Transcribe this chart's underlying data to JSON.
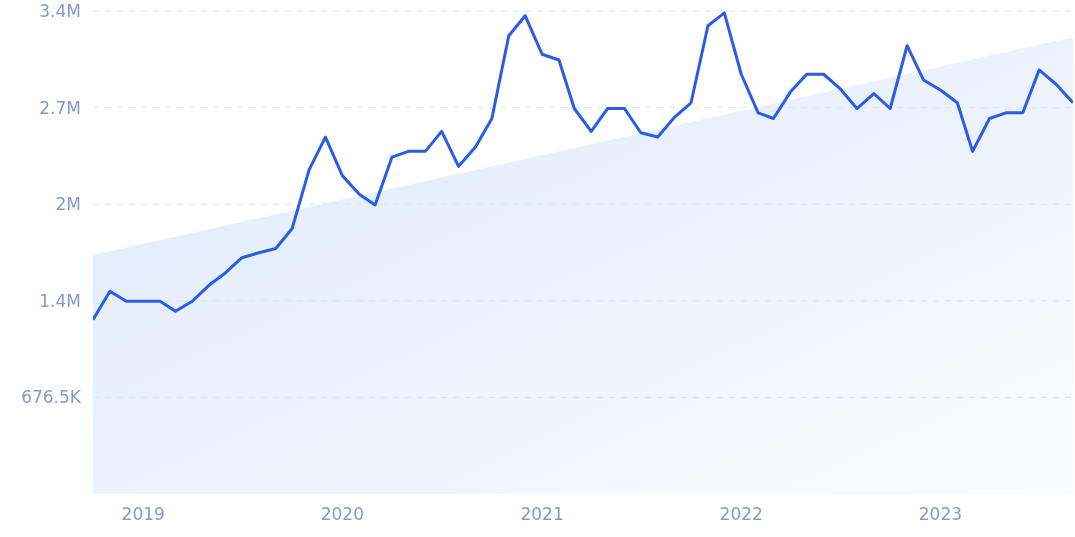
{
  "chart_data": {
    "type": "line",
    "x": [
      "2018-10",
      "2018-11",
      "2018-12",
      "2019-01",
      "2019-02",
      "2019-03",
      "2019-04",
      "2019-05",
      "2019-06",
      "2019-07",
      "2019-08",
      "2019-09",
      "2019-10",
      "2019-11",
      "2019-12",
      "2020-01",
      "2020-02",
      "2020-03",
      "2020-04",
      "2020-05",
      "2020-06",
      "2020-07",
      "2020-08",
      "2020-09",
      "2020-10",
      "2020-11",
      "2020-12",
      "2021-01",
      "2021-02",
      "2021-03",
      "2021-04",
      "2021-05",
      "2021-06",
      "2021-07",
      "2021-08",
      "2021-09",
      "2021-10",
      "2021-11",
      "2021-12",
      "2022-01",
      "2022-02",
      "2022-03",
      "2022-04",
      "2022-05",
      "2022-06",
      "2022-07",
      "2022-08",
      "2022-09",
      "2022-10",
      "2022-11",
      "2022-12",
      "2023-01",
      "2023-02",
      "2023-03",
      "2023-04",
      "2023-05",
      "2023-06",
      "2023-07",
      "2023-08",
      "2023-09"
    ],
    "series": [
      {
        "type": "area",
        "color": "#dde9fb",
        "x": [
          "2018-10",
          "2023-09"
        ],
        "values": [
          1674000,
          3200000
        ]
      },
      {
        "color": "#2b5ce6",
        "values": [
          1220000,
          1420000,
          1350000,
          1350000,
          1350000,
          1280000,
          1350000,
          1460000,
          1550000,
          1655000,
          1690000,
          1720000,
          1860000,
          2270000,
          2500000,
          2230000,
          2100000,
          2025000,
          2360000,
          2400000,
          2400000,
          2540000,
          2295000,
          2430000,
          2630000,
          3210000,
          3350000,
          3080000,
          3040000,
          2700000,
          2540000,
          2700000,
          2700000,
          2530000,
          2500000,
          2640000,
          2740000,
          3280000,
          3370000,
          2940000,
          2670000,
          2630000,
          2815000,
          2940000,
          2940000,
          2840000,
          2700000,
          2805000,
          2700000,
          3140000,
          2900000,
          2830000,
          2740000,
          2400000,
          2630000,
          2670000,
          2670000,
          2970000,
          2870000,
          2740000
        ]
      }
    ],
    "xlim": [
      "2018-10",
      "2023-09"
    ],
    "xticks": [
      "2019",
      "2020",
      "2021",
      "2022",
      "2023"
    ],
    "ylim": [
      0,
      3383000
    ],
    "yticks": [
      {
        "value": 676500,
        "label": "676.5K"
      },
      {
        "value": 1353000,
        "label": "1.4M"
      },
      {
        "value": 2029500,
        "label": "2M"
      },
      {
        "value": 2706000,
        "label": "2.7M"
      },
      {
        "value": 3383000,
        "label": "3.4M"
      }
    ],
    "grid": "y",
    "line_style": "solid",
    "marker": "none",
    "legend": false
  }
}
